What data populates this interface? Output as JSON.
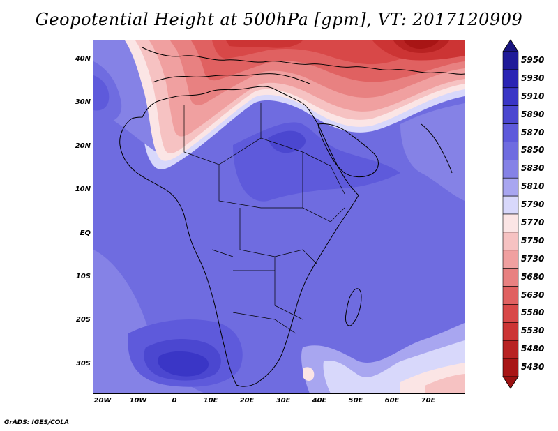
{
  "title": "Geopotential Height at 500hPa [gpm], VT: 2017120909",
  "credit": "GrADS: IGES/COLA",
  "y_axis_labels": [
    "40N",
    "30N",
    "20N",
    "10N",
    "EQ",
    "10S",
    "20S",
    "30S"
  ],
  "x_axis_labels": [
    "20W",
    "10W",
    "0",
    "10E",
    "20E",
    "30E",
    "40E",
    "50E",
    "60E",
    "70E"
  ],
  "colorbar": {
    "levels": [
      "5950",
      "5930",
      "5910",
      "5890",
      "5870",
      "5850",
      "5830",
      "5810",
      "5790",
      "5770",
      "5750",
      "5730",
      "5680",
      "5630",
      "5580",
      "5530",
      "5480",
      "5430"
    ],
    "colors": [
      "#1f1a99",
      "#2a24b4",
      "#3a36c6",
      "#4b47d0",
      "#5e5adb",
      "#6f6ce0",
      "#8582e6",
      "#a8a6f0",
      "#d8d8fb",
      "#fbe5e5",
      "#f6c2c2",
      "#f0a0a0",
      "#e88181",
      "#e06161",
      "#d84848",
      "#cc3434",
      "#b82222",
      "#a81515"
    ],
    "top_arrow_color": "#1a1580",
    "bottom_arrow_color": "#9b1111"
  },
  "map": {
    "background_color": "#6f6ce0",
    "coastline_color": "#000000"
  }
}
